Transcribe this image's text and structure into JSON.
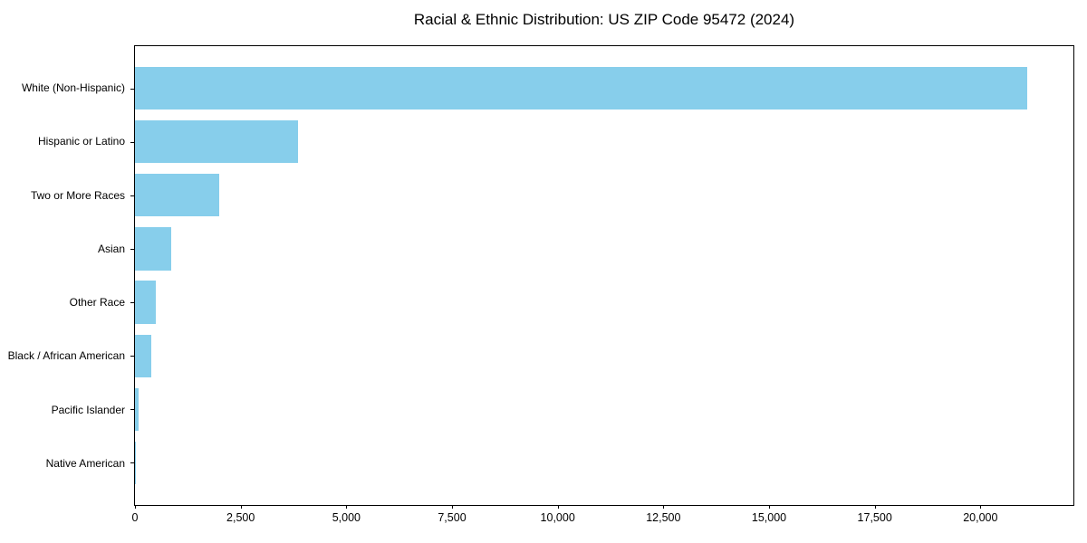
{
  "chart_data": {
    "type": "bar",
    "orientation": "horizontal",
    "title": "Racial & Ethnic Distribution: US ZIP Code 95472 (2024)",
    "categories": [
      "White (Non-Hispanic)",
      "Hispanic or Latino",
      "Two or More Races",
      "Asian",
      "Other Race",
      "Black / African American",
      "Pacific Islander",
      "Native American"
    ],
    "values": [
      21100,
      3850,
      2000,
      850,
      490,
      390,
      80,
      10
    ],
    "xlabel": "",
    "ylabel": "",
    "xlim": [
      0,
      22200
    ],
    "x_ticks": [
      0,
      2500,
      5000,
      7500,
      10000,
      12500,
      15000,
      17500,
      20000
    ],
    "x_tick_labels": [
      "0",
      "2,500",
      "5,000",
      "7,500",
      "10,000",
      "12,500",
      "15,000",
      "17,500",
      "20,000"
    ],
    "grid": false,
    "legend": null,
    "bar_height_fraction": 0.8,
    "colors": {
      "bar": "#87CEEB",
      "axis": "#000000",
      "text": "#000000",
      "background": "#FFFFFF"
    }
  }
}
